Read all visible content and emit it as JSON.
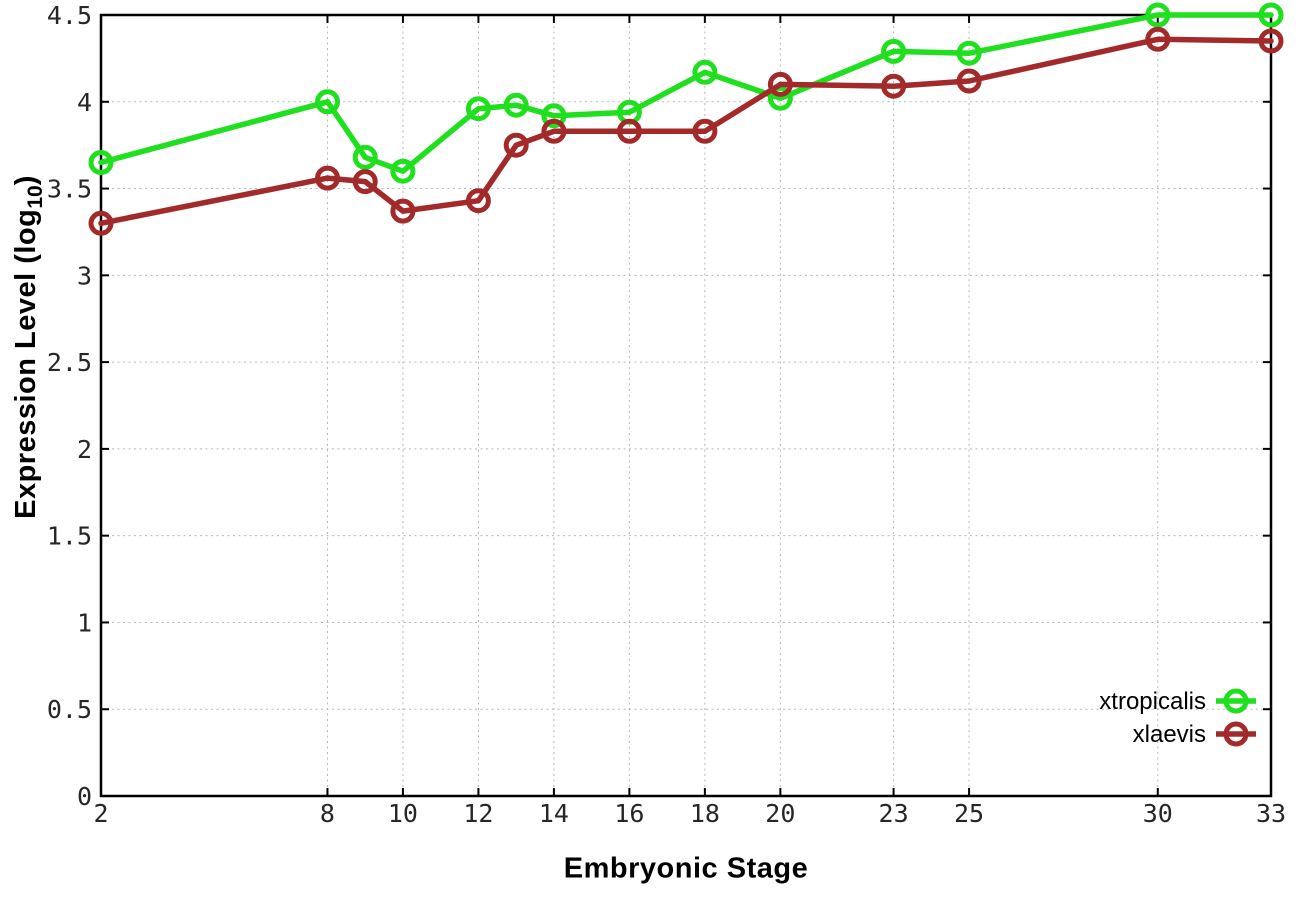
{
  "page": {
    "background": "#ffffff",
    "kind": "gnuplot-style line chart"
  },
  "axes": {
    "x_title": "Embryonic Stage",
    "y_title": "Expression Level (log10)",
    "y_title_prefix": "Expression Level (log",
    "y_title_sub": "10",
    "y_title_suffix": ")"
  },
  "legend": {
    "position": "inside-bottom-right",
    "items": [
      {
        "label": "xtropicalis",
        "color": "#1fdf1f"
      },
      {
        "label": "xlaevis",
        "color": "#a32a2a"
      }
    ]
  },
  "colors": {
    "border": "#000000",
    "grid": "#b8b8b8",
    "tick_label": "#262626",
    "xtropicalis": "#1fdf1f",
    "xlaevis": "#a32a2a"
  },
  "chart_data": {
    "type": "line",
    "title": "",
    "xlabel": "Embryonic Stage",
    "ylabel": "Expression Level (log10)",
    "xlim": [
      2,
      33
    ],
    "ylim": [
      0,
      4.5
    ],
    "grid": true,
    "grid_style": "dotted",
    "legend_position": "inside bottom right",
    "marker": "open-circle",
    "xticks": [
      2,
      8,
      10,
      12,
      14,
      16,
      18,
      20,
      23,
      25,
      30,
      33
    ],
    "yticks": [
      0,
      0.5,
      1,
      1.5,
      2,
      2.5,
      3,
      3.5,
      4,
      4.5
    ],
    "x": [
      2,
      8,
      9,
      10,
      12,
      13,
      14,
      16,
      18,
      20,
      23,
      25,
      30,
      33
    ],
    "series": [
      {
        "name": "xtropicalis",
        "color": "#1fdf1f",
        "values": [
          3.65,
          4.0,
          3.68,
          3.6,
          3.96,
          3.98,
          3.92,
          3.94,
          4.17,
          4.02,
          4.29,
          4.28,
          4.5,
          4.5
        ]
      },
      {
        "name": "xlaevis",
        "color": "#a32a2a",
        "values": [
          3.3,
          3.56,
          3.54,
          3.37,
          3.43,
          3.75,
          3.83,
          3.83,
          3.83,
          4.1,
          4.09,
          4.12,
          4.36,
          4.35
        ]
      }
    ]
  }
}
